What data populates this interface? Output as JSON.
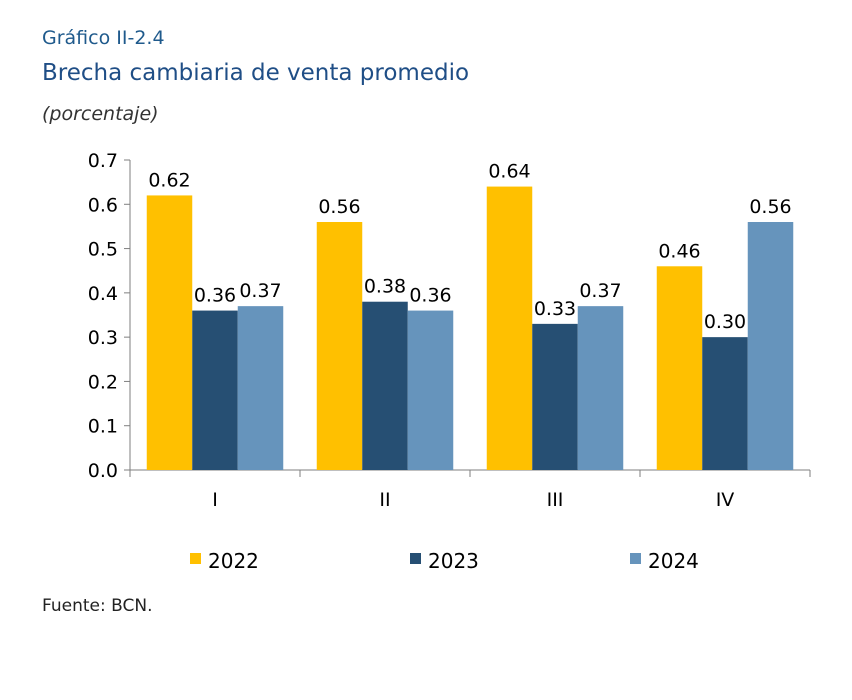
{
  "header": {
    "kicker": "Gráfico II-2.4",
    "title": "Brecha cambiaria de venta promedio",
    "subtitle": "(porcentaje)"
  },
  "footer": {
    "source": "Fuente: BCN."
  },
  "chart_data": {
    "type": "bar",
    "title": "Brecha cambiaria de venta promedio",
    "subtitle": "(porcentaje)",
    "xlabel": "",
    "ylabel": "",
    "categories": [
      "I",
      "II",
      "III",
      "IV"
    ],
    "ylim": [
      0.0,
      0.7
    ],
    "yticks": [
      "0.0",
      "0.1",
      "0.2",
      "0.3",
      "0.4",
      "0.5",
      "0.6",
      "0.7"
    ],
    "grid": false,
    "legend_position": "bottom",
    "series": [
      {
        "name": "2022",
        "color": "#FFC000",
        "values": [
          0.62,
          0.56,
          0.64,
          0.46
        ],
        "labels": [
          "0.62",
          "0.56",
          "0.64",
          "0.46"
        ]
      },
      {
        "name": "2023",
        "color": "#264F73",
        "values": [
          0.36,
          0.38,
          0.33,
          0.3
        ],
        "labels": [
          "0.36",
          "0.38",
          "0.33",
          "0.30"
        ]
      },
      {
        "name": "2024",
        "color": "#6694BC",
        "values": [
          0.37,
          0.36,
          0.37,
          0.56
        ],
        "labels": [
          "0.37",
          "0.36",
          "0.37",
          "0.56"
        ]
      }
    ]
  }
}
